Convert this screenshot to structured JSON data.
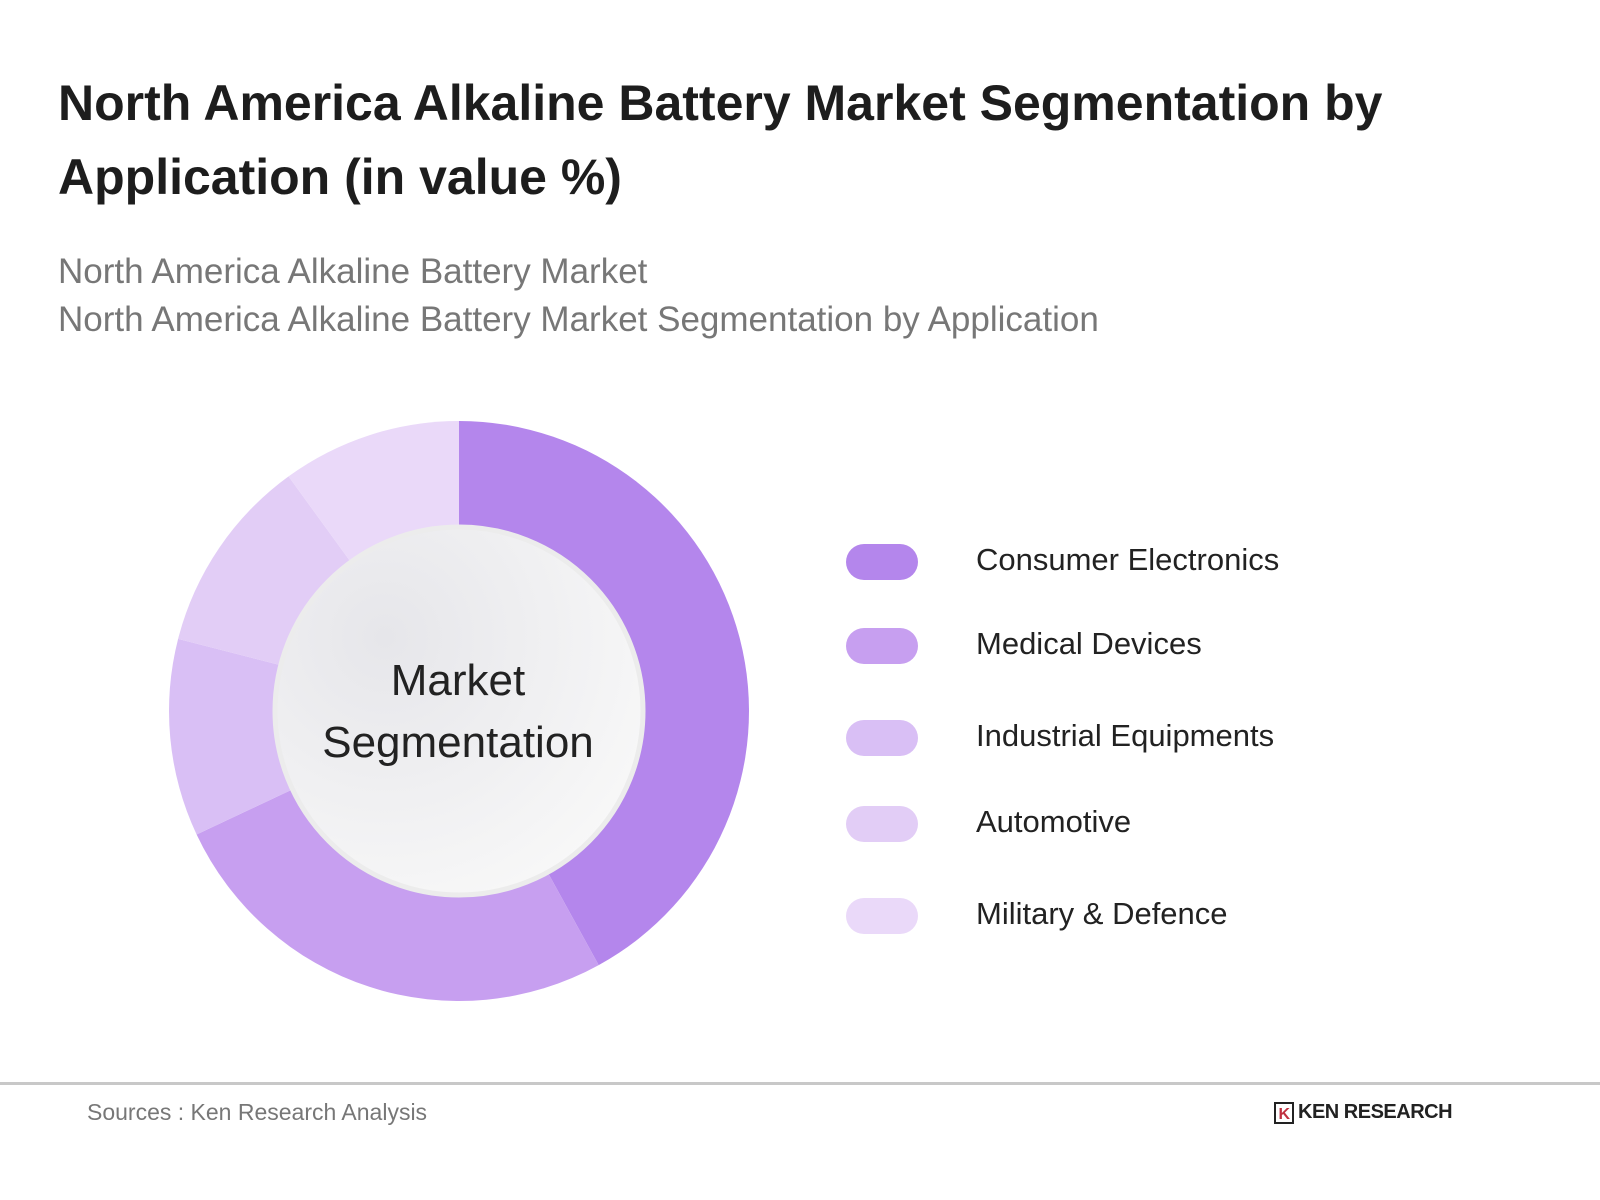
{
  "header": {
    "title": "North America Alkaline Battery Market Segmentation by Application (in value %)",
    "subtitle_1": "North America Alkaline Battery Market",
    "subtitle_2": "North America Alkaline Battery Market Segmentation by Application"
  },
  "chart_data": {
    "type": "pie",
    "variant": "donut",
    "title": "North America Alkaline Battery Market Segmentation by Application (in value %)",
    "center_label": [
      "Market",
      "Segmentation"
    ],
    "categories": [
      "Consumer Electronics",
      "Medical Devices",
      "Industrial Equipments",
      "Automotive",
      "Military & Defence"
    ],
    "values": [
      42,
      26,
      11,
      11,
      10
    ],
    "colors": [
      "#b486ec",
      "#c79ff0",
      "#d9bff5",
      "#e2cdf6",
      "#ead9f9"
    ],
    "legend_position": "right"
  },
  "footer": {
    "source": "Sources : Ken Research Analysis",
    "logo_text": "KEN RESEARCH",
    "logo_mark": "K"
  }
}
